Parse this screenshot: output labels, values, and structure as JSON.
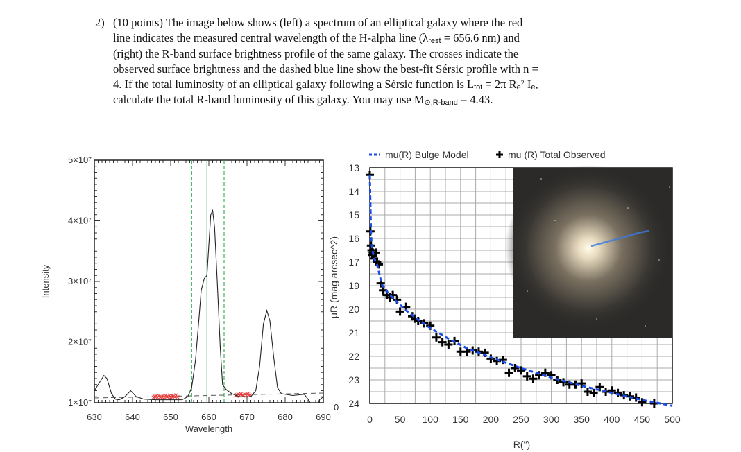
{
  "question": {
    "number": "2)",
    "lines": [
      "(10 points) The image below shows (left) a spectrum of an elliptical galaxy where the red",
      "line indicates the measured central wavelength of the H-alpha line (λ",
      "(right) the R-band surface brightness profile of the same galaxy.  The crosses indicate the",
      "observed surface brightness and the dashed blue line show the best-fit Sérsic profile with n =",
      "4.  If the total luminosity of an elliptical galaxy following a Sérsic function is L",
      "calculate the total R-band luminosity of this galaxy.  You may use M"
    ],
    "line2_sub": "rest",
    "line2_tail": " = 656.6 nm) and",
    "line5_sub": "tot",
    "line5_mid": " = 2π R",
    "line5_sub2": "e",
    "line5_sup": "2",
    "line5_tail": " I",
    "line5_sub3": "e",
    "line5_end": ",",
    "line6_sub": "⊙,R-band",
    "line6_tail": " = 4.43."
  },
  "chart_data": [
    {
      "type": "line",
      "title": "",
      "xlabel": "Wavelength",
      "ylabel": "Intensity",
      "xlim": [
        630,
        690
      ],
      "ylim": [
        10000000.0,
        50000000.0
      ],
      "xticks": [
        "630",
        "640",
        "650",
        "660",
        "670",
        "680",
        "690"
      ],
      "yticks": [
        "1×10⁷",
        "2×10⁷",
        "3×10⁷",
        "4×10⁷",
        "5×10⁷"
      ],
      "spectrum_x": [
        630,
        631,
        632.5,
        633.3,
        634.5,
        635.5,
        636.5,
        638,
        639.5,
        641,
        643,
        646,
        650,
        653,
        654.5,
        655.5,
        656.5,
        657.3,
        658,
        658.8,
        659.5,
        660,
        660.5,
        661,
        661.5,
        662.2,
        663,
        663.6,
        664.5,
        666,
        668,
        671,
        672.3,
        673.3,
        674.3,
        675.2,
        676,
        677,
        678,
        679,
        682,
        685,
        686,
        687,
        688,
        689,
        690
      ],
      "spectrum_y": [
        12000000.0,
        13000000.0,
        14500000.0,
        14000000.0,
        11500000.0,
        10600000.0,
        10500000.0,
        11000000.0,
        12000000.0,
        11000000.0,
        10600000.0,
        10500000.0,
        10500000.0,
        10500000.0,
        11000000.0,
        12500000.0,
        17000000.0,
        23000000.0,
        28500000.0,
        30500000.0,
        31000000.0,
        36000000.0,
        41000000.0,
        41700000.0,
        39000000.0,
        30000000.0,
        19000000.0,
        13000000.0,
        12200000.0,
        11500000.0,
        11000000.0,
        11000000.0,
        12000000.0,
        16000000.0,
        23000000.0,
        25200000.0,
        23500000.0,
        17500000.0,
        12500000.0,
        11500000.0,
        11200000.0,
        11400000.0,
        10600000.0,
        9500000.0,
        9000000.0,
        10500000.0,
        11000000.0
      ],
      "continuum": {
        "x": [
          630,
          690
        ],
        "y": [
          10800000.0,
          11600000.0
        ]
      },
      "green_lines": {
        "dashed": [
          655.5,
          664
        ],
        "solid": [
          659.5
        ]
      },
      "red_marked_ranges": [
        [
          645.5,
          652
        ],
        [
          667,
          671
        ]
      ]
    },
    {
      "type": "scatter",
      "title": "",
      "xlabel": "R(\")",
      "ylabel": "μR  (mag arcsec^2)",
      "stray_label": "0",
      "xlim": [
        0,
        500
      ],
      "xticks": [
        "0",
        "50",
        "100",
        "150",
        "200",
        "250",
        "300",
        "350",
        "400",
        "450",
        "500"
      ],
      "yticks": [
        "13",
        "14",
        "15",
        "16",
        "17",
        "19",
        "20",
        "21",
        "22",
        "23",
        "24"
      ],
      "legend": [
        {
          "name": "mu(R) Bulge Model",
          "color": "#1a4de8",
          "style": "dashed"
        },
        {
          "name": "mu (R) Total Observed",
          "color": "#000",
          "style": "cross"
        }
      ],
      "legend_position": "top",
      "model": {
        "x": [
          0,
          1,
          2,
          3,
          5,
          8,
          12,
          20,
          30,
          45,
          60,
          80,
          100,
          130,
          160,
          200,
          250,
          300,
          350,
          400,
          450,
          500
        ],
        "y": [
          13.3,
          14.5,
          15.8,
          16.2,
          16.6,
          16.9,
          17.2,
          18.9,
          19.3,
          19.7,
          20.05,
          20.45,
          20.8,
          21.25,
          21.65,
          22.05,
          22.5,
          22.9,
          23.25,
          23.55,
          23.85,
          24.1
        ]
      },
      "observed": {
        "x": [
          0,
          1,
          2,
          3,
          4,
          5,
          7,
          10,
          12,
          15,
          18,
          22,
          28,
          33,
          38,
          45,
          50,
          60,
          70,
          75,
          80,
          90,
          100,
          110,
          120,
          130,
          140,
          150,
          160,
          170,
          180,
          190,
          200,
          210,
          220,
          230,
          240,
          250,
          260,
          270,
          280,
          290,
          300,
          310,
          320,
          330,
          340,
          350,
          360,
          370,
          380,
          390,
          400,
          410,
          420,
          430,
          440,
          450,
          470
        ],
        "y": [
          13.3,
          15.7,
          16.3,
          16.5,
          16.7,
          16.6,
          16.85,
          16.6,
          17.0,
          17.2,
          18.8,
          19.2,
          19.4,
          19.5,
          19.4,
          19.6,
          20.1,
          19.9,
          20.3,
          20.4,
          20.5,
          20.6,
          20.7,
          21.2,
          21.4,
          21.5,
          21.35,
          21.8,
          21.8,
          21.75,
          21.8,
          21.85,
          22.1,
          22.2,
          22.15,
          22.7,
          22.5,
          22.6,
          22.85,
          22.95,
          22.8,
          22.7,
          22.8,
          23.0,
          23.1,
          23.2,
          23.2,
          23.15,
          23.5,
          23.55,
          23.3,
          23.5,
          23.45,
          23.55,
          23.65,
          23.7,
          23.75,
          23.95,
          24.0
        ]
      },
      "inset": "galaxy-image"
    }
  ]
}
